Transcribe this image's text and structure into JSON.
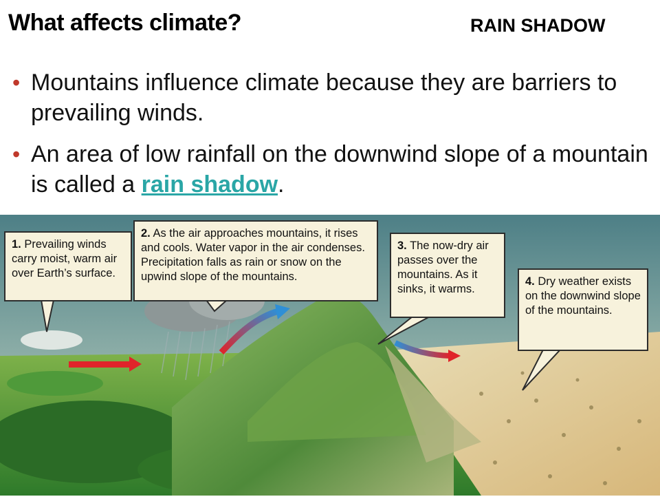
{
  "slide": {
    "title": "What affects climate?",
    "tag": "RAIN SHADOW",
    "bullets": [
      "Mountains influence climate because they are barriers to prevailing winds.",
      "An area of low rainfall on the downwind slope of a mountain is called a"
    ],
    "link_text": "rain shadow",
    "link_suffix": ".",
    "bullet_glyph": "•"
  },
  "diagram": {
    "callouts": [
      {
        "num": "1.",
        "text": "Prevailing winds carry moist, warm air over Earth’s surface."
      },
      {
        "num": "2.",
        "text": "As the air approaches mountains, it rises and cools. Water vapor in the air condenses. Precipitation falls as rain or snow on the upwind slope of the mountains."
      },
      {
        "num": "3.",
        "text": "The now-dry air passes over the mountains. As it sinks, it warms."
      },
      {
        "num": "4.",
        "text": "Dry weather exists on the downwind slope of the mountains."
      }
    ],
    "colors": {
      "callout_bg": "#f7f2dc",
      "warm_arrow": "#e0242a",
      "cool_arrow": "#2f8fd6",
      "link": "#2aa6a6",
      "bullet": "#c0392b"
    }
  }
}
